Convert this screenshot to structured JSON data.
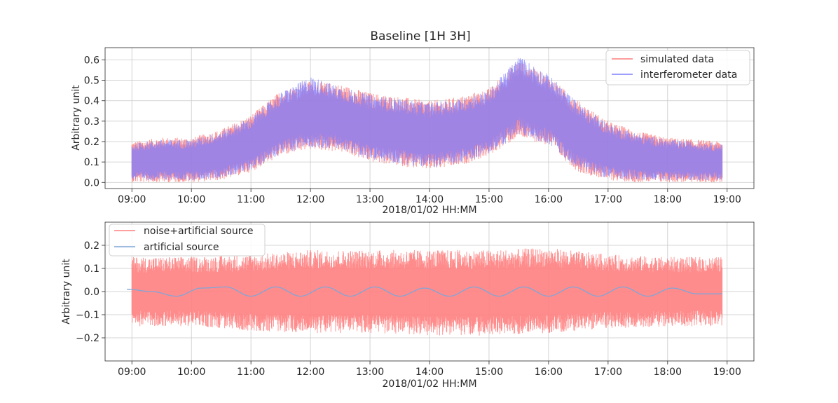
{
  "colors": {
    "simulated": "#ff7f7f",
    "interferometer": "#7f7fff",
    "noise": "#ff8080",
    "artificial": "#7fa6d9",
    "grid": "#c8c8c8",
    "axis": "#262626"
  },
  "chart_data": [
    {
      "type": "line",
      "title": "Baseline [1H 3H]",
      "xlabel": "2018/01/02 HH:MM",
      "ylabel": "Arbitrary unit",
      "x_ticks": [
        "09:00",
        "10:00",
        "11:00",
        "12:00",
        "13:00",
        "14:00",
        "15:00",
        "16:00",
        "17:00",
        "18:00",
        "19:00"
      ],
      "y_ticks": [
        "0.0",
        "0.1",
        "0.2",
        "0.3",
        "0.4",
        "0.5",
        "0.6"
      ],
      "xlim": [
        "08:33",
        "19:27"
      ],
      "ylim": [
        -0.03,
        0.66
      ],
      "grid": true,
      "legend": "top-right",
      "series": [
        {
          "name": "simulated data",
          "x": [
            "09:00",
            "09:30",
            "10:00",
            "10:30",
            "11:00",
            "11:30",
            "12:00",
            "12:30",
            "13:00",
            "13:30",
            "14:00",
            "14:30",
            "15:00",
            "15:30",
            "16:00",
            "16:30",
            "17:00",
            "17:30",
            "18:00",
            "18:30",
            "18:55"
          ],
          "upper": [
            0.2,
            0.22,
            0.22,
            0.26,
            0.33,
            0.45,
            0.5,
            0.48,
            0.44,
            0.42,
            0.4,
            0.42,
            0.46,
            0.6,
            0.52,
            0.4,
            0.3,
            0.25,
            0.22,
            0.21,
            0.2
          ],
          "lower": [
            0.0,
            0.0,
            0.0,
            0.01,
            0.05,
            0.13,
            0.16,
            0.15,
            0.1,
            0.08,
            0.06,
            0.08,
            0.13,
            0.22,
            0.18,
            0.05,
            0.01,
            0.0,
            0.0,
            0.0,
            0.0
          ]
        },
        {
          "name": "interferometer data",
          "x": [
            "09:00",
            "09:30",
            "10:00",
            "10:30",
            "11:00",
            "11:30",
            "12:00",
            "12:30",
            "13:00",
            "13:30",
            "14:00",
            "14:30",
            "15:00",
            "15:30",
            "16:00",
            "16:30",
            "17:00",
            "17:30",
            "18:00",
            "18:30",
            "18:55"
          ],
          "upper": [
            0.19,
            0.21,
            0.21,
            0.25,
            0.32,
            0.44,
            0.52,
            0.47,
            0.43,
            0.41,
            0.39,
            0.41,
            0.45,
            0.62,
            0.53,
            0.39,
            0.29,
            0.24,
            0.21,
            0.2,
            0.19
          ],
          "lower": [
            0.01,
            0.01,
            0.01,
            0.02,
            0.06,
            0.14,
            0.17,
            0.16,
            0.11,
            0.09,
            0.07,
            0.09,
            0.14,
            0.23,
            0.19,
            0.06,
            0.02,
            0.01,
            0.01,
            0.01,
            0.01
          ]
        }
      ]
    },
    {
      "type": "line",
      "title": "",
      "xlabel": "2018/01/02 HH:MM",
      "ylabel": "Arbitrary unit",
      "x_ticks": [
        "09:00",
        "10:00",
        "11:00",
        "12:00",
        "13:00",
        "14:00",
        "15:00",
        "16:00",
        "17:00",
        "18:00",
        "19:00"
      ],
      "y_ticks": [
        "−0.2",
        "−0.1",
        "0.0",
        "0.1",
        "0.2"
      ],
      "xlim": [
        "08:33",
        "19:27"
      ],
      "ylim": [
        -0.3,
        0.3
      ],
      "grid": true,
      "legend": "top-left",
      "series": [
        {
          "name": "noise+artificial source",
          "x": [
            "09:00",
            "10:00",
            "11:00",
            "12:00",
            "13:00",
            "14:00",
            "15:00",
            "16:00",
            "17:00",
            "18:00",
            "18:55"
          ],
          "upper": [
            0.15,
            0.15,
            0.16,
            0.18,
            0.18,
            0.18,
            0.18,
            0.19,
            0.16,
            0.15,
            0.15
          ],
          "lower": [
            -0.15,
            -0.15,
            -0.17,
            -0.18,
            -0.18,
            -0.19,
            -0.19,
            -0.18,
            -0.16,
            -0.15,
            -0.15
          ]
        },
        {
          "name": "artificial source",
          "x": [
            "08:55",
            "09:20",
            "09:45",
            "10:10",
            "10:35",
            "11:00",
            "11:25",
            "11:50",
            "12:15",
            "12:40",
            "13:05",
            "13:30",
            "13:55",
            "14:20",
            "14:45",
            "15:10",
            "15:35",
            "16:00",
            "16:25",
            "16:50",
            "17:15",
            "17:40",
            "18:05",
            "18:30",
            "18:55"
          ],
          "y": [
            0.01,
            0.0,
            -0.02,
            0.015,
            0.02,
            -0.02,
            0.02,
            -0.02,
            0.02,
            -0.02,
            0.02,
            -0.02,
            0.015,
            -0.02,
            0.02,
            -0.02,
            0.02,
            -0.02,
            0.02,
            -0.02,
            0.02,
            -0.02,
            0.015,
            -0.01,
            -0.01
          ]
        }
      ]
    }
  ]
}
